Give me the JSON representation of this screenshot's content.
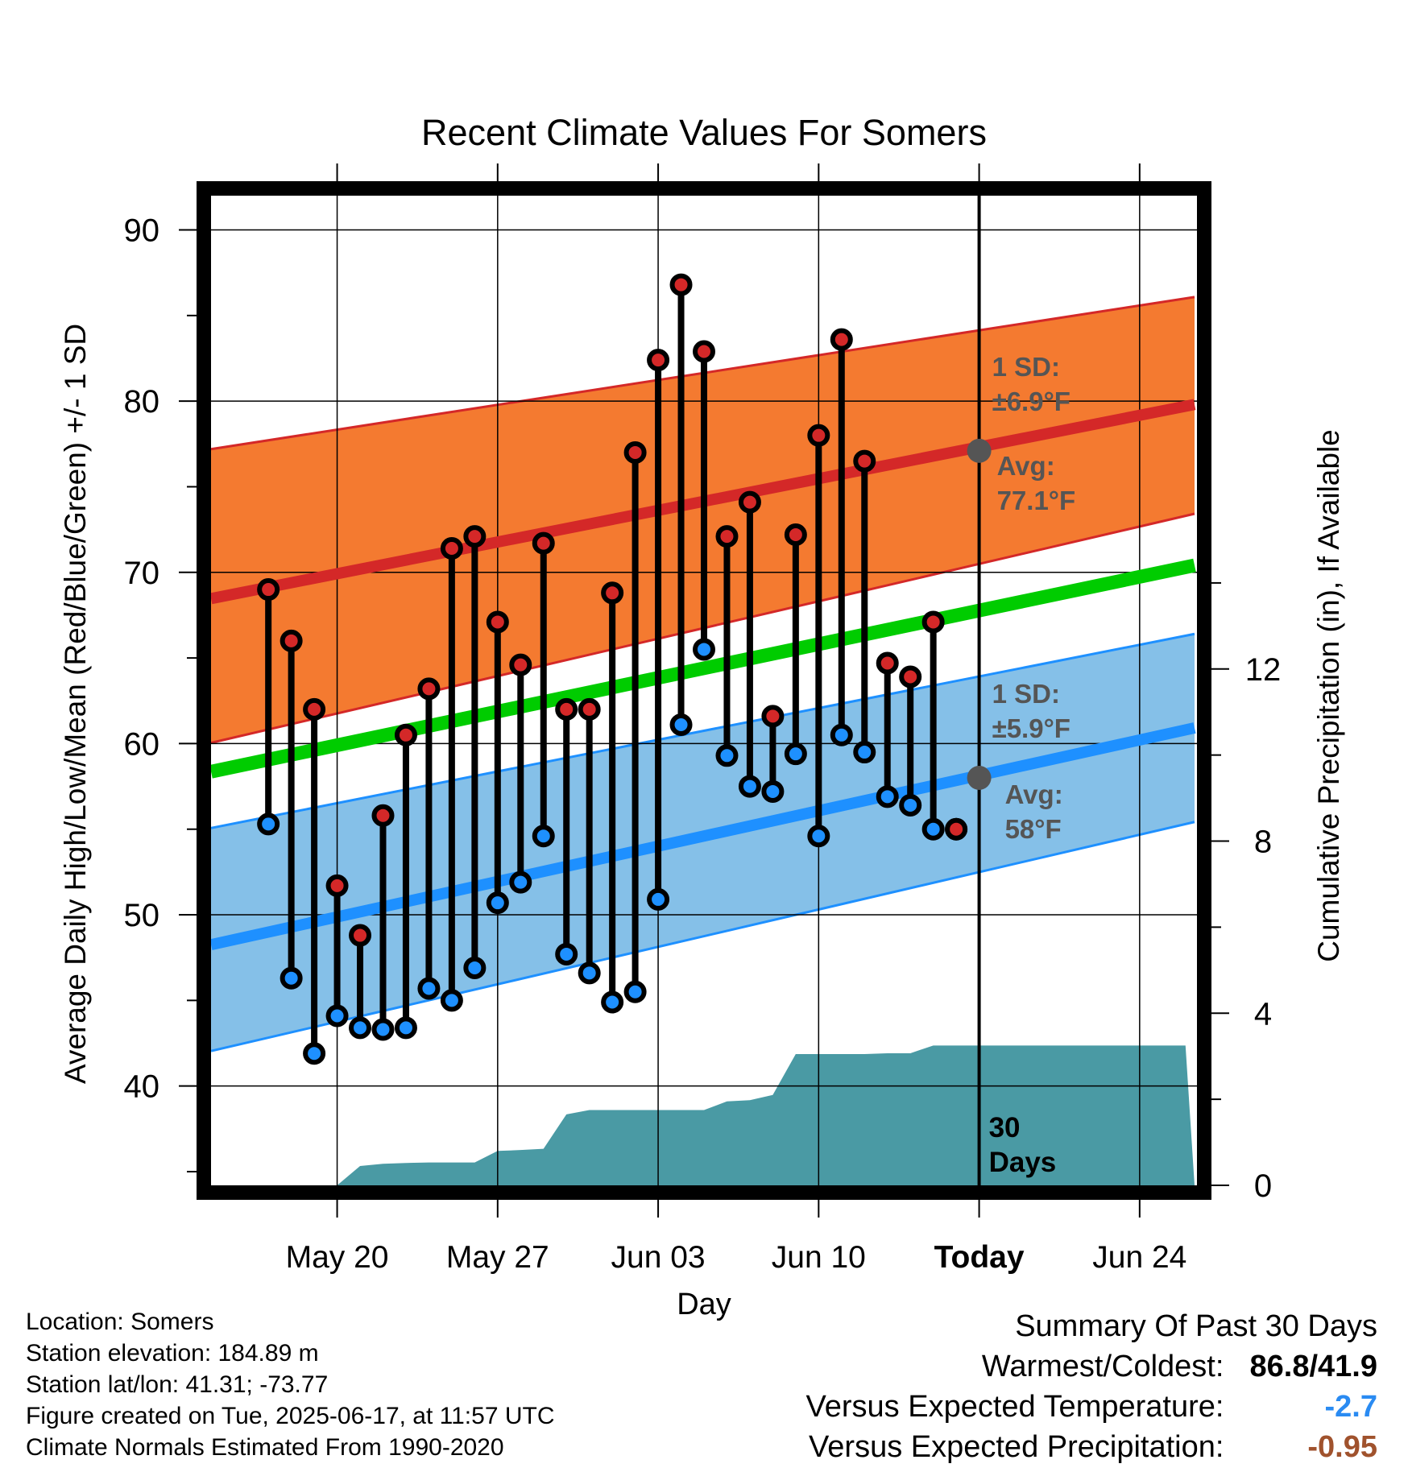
{
  "chart_data": {
    "type": "line",
    "title": "Recent Climate Values For Somers",
    "xlabel": "Day",
    "ylabel": "Average Daily High/Low/Mean (Red/Blue/Green) +/- 1 SD",
    "y2label": "Cumulative Precipitation (in), If Available",
    "ylim": [
      34.2,
      92
    ],
    "y2lim": [
      0,
      23
    ],
    "yticks": [
      40,
      50,
      60,
      70,
      80,
      90
    ],
    "y2ticks": [
      0,
      4,
      8,
      12
    ],
    "xrange_days": [
      -33.5,
      9.5
    ],
    "xtick_days": [
      -28,
      -21,
      -14,
      -7,
      0,
      7
    ],
    "xtick_labels": [
      "May 20",
      "May 27",
      "Jun 03",
      "Jun 10",
      "Today",
      "Jun 24"
    ],
    "grid": true,
    "today_marker": {
      "label_line1": "30",
      "label_line2": "Days"
    },
    "normals": {
      "x": [
        -33,
        9
      ],
      "high_avg": [
        68.6,
        79.7
      ],
      "high_upper": [
        77.3,
        86.0
      ],
      "high_lower": [
        60.2,
        73.3
      ],
      "mean": [
        58.5,
        70.3
      ],
      "low_avg": [
        48.4,
        60.8
      ],
      "low_upper": [
        55.2,
        66.3
      ],
      "low_lower": [
        42.2,
        55.3
      ]
    },
    "annotations": {
      "high_sd": {
        "line1": "1 SD:",
        "line2": "±6.9°F"
      },
      "high_avg": {
        "line1": "Avg:",
        "line2": "77.1°F",
        "value": 77.1
      },
      "low_sd": {
        "line1": "1 SD:",
        "line2": "±5.9°F"
      },
      "low_avg": {
        "line1": "Avg:",
        "line2": "58°F",
        "value": 58.0
      }
    },
    "series": [
      {
        "name": "Daily High",
        "x": [
          -31,
          -30,
          -29,
          -28,
          -27,
          -26,
          -25,
          -24,
          -23,
          -22,
          -21,
          -20,
          -19,
          -18,
          -17,
          -16,
          -15,
          -14,
          -13,
          -12,
          -11,
          -10,
          -9,
          -8,
          -7,
          -6,
          -5,
          -4,
          -3,
          -2,
          -1
        ],
        "values": [
          69.0,
          66.0,
          62.0,
          51.7,
          48.8,
          55.8,
          60.5,
          63.2,
          71.4,
          72.1,
          67.1,
          64.6,
          71.7,
          62.0,
          62.0,
          68.8,
          77.0,
          82.4,
          86.8,
          82.9,
          72.1,
          74.1,
          61.6,
          72.2,
          78.0,
          83.6,
          76.5,
          64.7,
          63.9,
          67.1,
          55.0
        ]
      },
      {
        "name": "Daily Low",
        "x": [
          -31,
          -30,
          -29,
          -28,
          -27,
          -26,
          -25,
          -24,
          -23,
          -22,
          -21,
          -20,
          -19,
          -18,
          -17,
          -16,
          -15,
          -14,
          -13,
          -12,
          -11,
          -10,
          -9,
          -8,
          -7,
          -6,
          -5,
          -4,
          -3,
          -2,
          -1
        ],
        "values": [
          55.3,
          46.3,
          41.9,
          44.1,
          43.4,
          43.3,
          43.4,
          45.7,
          45.0,
          46.9,
          50.7,
          51.9,
          54.6,
          47.7,
          46.6,
          44.9,
          45.5,
          50.9,
          61.1,
          65.5,
          59.3,
          57.5,
          57.2,
          59.4,
          54.6,
          60.5,
          59.5,
          56.9,
          56.4,
          55.0,
          55.0
        ]
      },
      {
        "name": "Cumulative Precipitation",
        "x": [
          -33,
          -28,
          -27,
          -26,
          -25,
          -24,
          -23,
          -22,
          -21,
          -20,
          -19,
          -18,
          -17,
          -16,
          -15,
          -14,
          -13,
          -12,
          -11,
          -10,
          -9,
          -8,
          -7,
          -6,
          -5,
          -4,
          -3,
          -2,
          -1,
          0,
          9
        ],
        "values": [
          0,
          0,
          0.45,
          0.5,
          0.52,
          0.53,
          0.53,
          0.53,
          0.8,
          0.82,
          0.85,
          1.65,
          1.75,
          1.75,
          1.75,
          1.75,
          1.75,
          1.75,
          1.95,
          1.98,
          2.1,
          3.05,
          3.05,
          3.05,
          3.05,
          3.07,
          3.07,
          3.25,
          3.25,
          3.25,
          3.25
        ]
      }
    ]
  },
  "footer": {
    "location": "Location: Somers",
    "elevation": "Station elevation: 184.89 m",
    "latlon": "Station lat/lon: 41.31; -73.77",
    "created": "Figure created on Tue, 2025-06-17, at 11:57 UTC",
    "normals": "Climate Normals Estimated From 1990-2020"
  },
  "summary": {
    "title": "Summary Of Past 30 Days",
    "warm_cold_label": "Warmest/Coldest:",
    "warm_cold_value": "86.8/41.9",
    "temp_label": "Versus Expected Temperature:",
    "temp_value": "-2.7",
    "precip_label": "Versus Expected Precipitation:",
    "precip_value": "-0.95"
  },
  "colors": {
    "high_band": "#f47a30",
    "high_avg": "#d42828",
    "mean": "#00cc00",
    "low_band": "#85c0e8",
    "low_avg": "#1e90ff",
    "precip": "#4a9aa4",
    "high_marker": "#d42828",
    "low_marker": "#1e90ff",
    "annot": "#555555",
    "temp_value": "#2a8bf2",
    "precip_value": "#a0522d"
  }
}
